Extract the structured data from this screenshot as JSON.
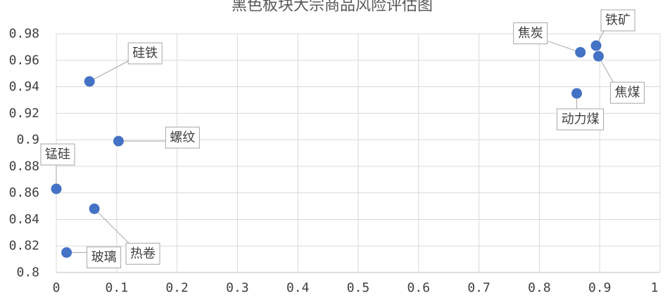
{
  "chart_data": {
    "type": "scatter",
    "title": "黑色板块大宗商品风险评估图",
    "xlim": [
      0,
      1
    ],
    "ylim": [
      0.8,
      0.98
    ],
    "x_ticks": [
      "0",
      "0.1",
      "0.2",
      "0.3",
      "0.4",
      "0.5",
      "0.6",
      "0.7",
      "0.8",
      "0.9",
      "1"
    ],
    "y_ticks": [
      "0.8",
      "0.82",
      "0.84",
      "0.86",
      "0.88",
      "0.9",
      "0.92",
      "0.94",
      "0.96",
      "0.98"
    ],
    "grid": true,
    "point_color": "#4472C4",
    "points": [
      {
        "label": "硅铁",
        "x": 0.055,
        "y": 0.944
      },
      {
        "label": "螺纹",
        "x": 0.103,
        "y": 0.899
      },
      {
        "label": "锰硅",
        "x": 0.0,
        "y": 0.863
      },
      {
        "label": "热卷",
        "x": 0.063,
        "y": 0.848
      },
      {
        "label": "玻璃",
        "x": 0.017,
        "y": 0.815
      },
      {
        "label": "焦炭",
        "x": 0.868,
        "y": 0.966
      },
      {
        "label": "铁矿",
        "x": 0.894,
        "y": 0.971
      },
      {
        "label": "焦煤",
        "x": 0.898,
        "y": 0.963
      },
      {
        "label": "动力煤",
        "x": 0.862,
        "y": 0.935
      }
    ]
  }
}
